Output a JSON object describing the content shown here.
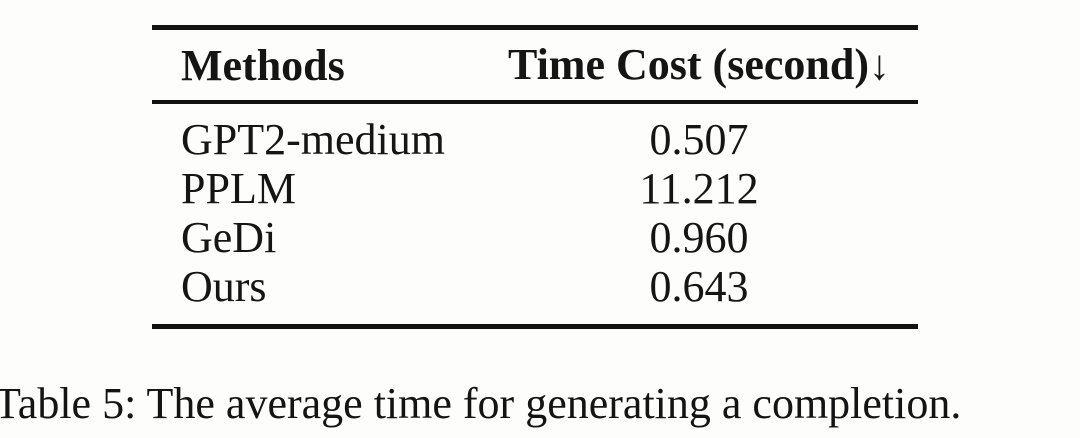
{
  "table": {
    "columns": [
      {
        "label": "Methods"
      },
      {
        "label": "Time Cost (second)",
        "sort_indicator": "↓"
      }
    ],
    "rows": [
      {
        "method": "GPT2-medium",
        "time_cost": "0.507"
      },
      {
        "method": "PPLM",
        "time_cost": "11.212"
      },
      {
        "method": "GeDi",
        "time_cost": "0.960"
      },
      {
        "method": "Ours",
        "time_cost": "0.643"
      }
    ]
  },
  "caption": "Table 5: The average time for generating a completion.",
  "colors": {
    "text": "#151515",
    "rule": "#121212",
    "background": "#fdfdfc"
  }
}
